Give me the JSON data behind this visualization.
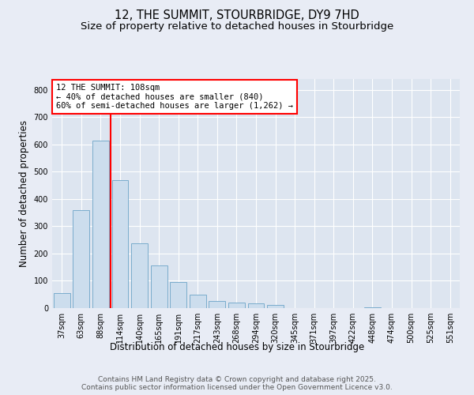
{
  "title1": "12, THE SUMMIT, STOURBRIDGE, DY9 7HD",
  "title2": "Size of property relative to detached houses in Stourbridge",
  "xlabel": "Distribution of detached houses by size in Stourbridge",
  "ylabel": "Number of detached properties",
  "categories": [
    "37sqm",
    "63sqm",
    "88sqm",
    "114sqm",
    "140sqm",
    "165sqm",
    "191sqm",
    "217sqm",
    "243sqm",
    "268sqm",
    "294sqm",
    "320sqm",
    "345sqm",
    "371sqm",
    "397sqm",
    "422sqm",
    "448sqm",
    "474sqm",
    "500sqm",
    "525sqm",
    "551sqm"
  ],
  "values": [
    55,
    358,
    615,
    468,
    238,
    155,
    95,
    50,
    25,
    20,
    18,
    12,
    0,
    0,
    0,
    0,
    3,
    0,
    0,
    0,
    0
  ],
  "bar_color": "#ccdded",
  "bar_edge_color": "#7aaccc",
  "vline_color": "red",
  "vline_x": 2.5,
  "annotation_title": "12 THE SUMMIT: 108sqm",
  "annotation_line2": "← 40% of detached houses are smaller (840)",
  "annotation_line3": "60% of semi-detached houses are larger (1,262) →",
  "ylim": [
    0,
    840
  ],
  "yticks": [
    0,
    100,
    200,
    300,
    400,
    500,
    600,
    700,
    800
  ],
  "background_color": "#e8ecf5",
  "plot_bg_color": "#dde5f0",
  "grid_color": "#ffffff",
  "footer1": "Contains HM Land Registry data © Crown copyright and database right 2025.",
  "footer2": "Contains public sector information licensed under the Open Government Licence v3.0.",
  "title_fontsize": 10.5,
  "subtitle_fontsize": 9.5,
  "tick_fontsize": 7,
  "label_fontsize": 8.5,
  "annotation_fontsize": 7.5,
  "footer_fontsize": 6.5
}
